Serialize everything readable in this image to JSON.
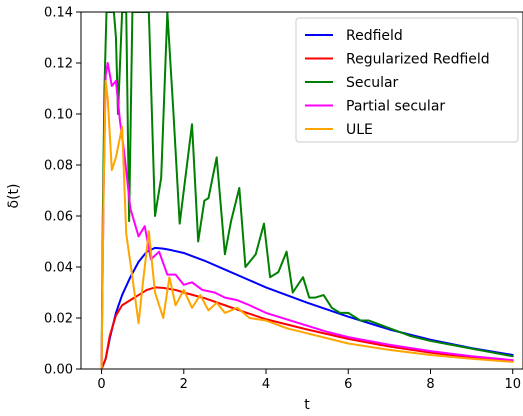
{
  "chart_data": {
    "type": "line",
    "xlabel": "t",
    "ylabel": "δ(t)",
    "xlim": [
      -0.5,
      10.25
    ],
    "ylim": [
      0,
      0.14
    ],
    "xticks": [
      0,
      2,
      4,
      6,
      8,
      10
    ],
    "yticks": [
      0.0,
      0.02,
      0.04,
      0.06,
      0.08,
      0.1,
      0.12,
      0.14
    ],
    "xtick_labels": [
      "0",
      "2",
      "4",
      "6",
      "8",
      "10"
    ],
    "ytick_labels": [
      "0.00",
      "0.02",
      "0.04",
      "0.06",
      "0.08",
      "0.10",
      "0.12",
      "0.14"
    ],
    "grid": false,
    "legend_position": "top-right",
    "series": [
      {
        "name": "Redfield",
        "color": "#0000ff",
        "x": [
          0,
          0.1,
          0.2,
          0.35,
          0.5,
          0.7,
          0.9,
          1.1,
          1.3,
          1.5,
          1.7,
          2.0,
          2.5,
          3.0,
          3.5,
          4.0,
          5.0,
          6.0,
          7.0,
          8.0,
          9.0,
          10.0
        ],
        "y": [
          0,
          0.004,
          0.012,
          0.022,
          0.029,
          0.036,
          0.042,
          0.046,
          0.0475,
          0.0472,
          0.0466,
          0.0455,
          0.0425,
          0.039,
          0.0355,
          0.032,
          0.026,
          0.0205,
          0.0155,
          0.0115,
          0.0082,
          0.0055
        ]
      },
      {
        "name": "Regularized Redfield",
        "color": "#ff0000",
        "x": [
          0,
          0.1,
          0.2,
          0.35,
          0.5,
          0.7,
          0.9,
          1.1,
          1.3,
          1.5,
          1.8,
          2.0,
          2.5,
          3.0,
          3.5,
          4.0,
          5.0,
          6.0,
          7.0,
          8.0,
          9.0,
          10.0
        ],
        "y": [
          0,
          0.004,
          0.013,
          0.021,
          0.025,
          0.027,
          0.029,
          0.031,
          0.032,
          0.0318,
          0.031,
          0.03,
          0.0278,
          0.025,
          0.0222,
          0.0195,
          0.0155,
          0.0118,
          0.0088,
          0.0064,
          0.0045,
          0.003
        ]
      },
      {
        "name": "Secular",
        "color": "#008000",
        "x": [
          0,
          0.03,
          0.07,
          0.12,
          0.2,
          0.3,
          0.35,
          0.4,
          0.5,
          0.6,
          0.67,
          0.75,
          0.85,
          1.0,
          1.15,
          1.3,
          1.45,
          1.6,
          1.75,
          1.9,
          2.0,
          2.2,
          2.35,
          2.5,
          2.6,
          2.8,
          3.0,
          3.15,
          3.35,
          3.5,
          3.75,
          3.95,
          4.1,
          4.3,
          4.5,
          4.65,
          4.9,
          5.05,
          5.2,
          5.4,
          5.6,
          5.8,
          6.0,
          6.3,
          6.5,
          7.0,
          7.5,
          8.0,
          8.5,
          9.0,
          9.5,
          10.0
        ],
        "y": [
          0,
          0.06,
          0.11,
          0.14,
          0.14,
          0.14,
          0.13,
          0.1,
          0.14,
          0.14,
          0.058,
          0.14,
          0.14,
          0.14,
          0.14,
          0.06,
          0.075,
          0.14,
          0.1,
          0.057,
          0.07,
          0.096,
          0.05,
          0.066,
          0.067,
          0.083,
          0.045,
          0.058,
          0.071,
          0.04,
          0.045,
          0.057,
          0.036,
          0.038,
          0.046,
          0.03,
          0.036,
          0.028,
          0.028,
          0.029,
          0.024,
          0.022,
          0.022,
          0.019,
          0.019,
          0.016,
          0.013,
          0.011,
          0.0095,
          0.008,
          0.0065,
          0.005
        ]
      },
      {
        "name": "Partial secular",
        "color": "#ff00ff",
        "x": [
          0,
          0.05,
          0.1,
          0.15,
          0.25,
          0.35,
          0.45,
          0.55,
          0.7,
          0.9,
          1.05,
          1.2,
          1.4,
          1.6,
          1.8,
          2.0,
          2.2,
          2.45,
          2.75,
          3.0,
          3.3,
          3.6,
          4.0,
          4.5,
          5.0,
          5.5,
          6.0,
          7.0,
          8.0,
          9.0,
          10.0
        ],
        "y": [
          0,
          0.07,
          0.115,
          0.12,
          0.111,
          0.113,
          0.097,
          0.085,
          0.063,
          0.052,
          0.056,
          0.043,
          0.046,
          0.037,
          0.037,
          0.033,
          0.034,
          0.031,
          0.03,
          0.028,
          0.027,
          0.025,
          0.022,
          0.0195,
          0.017,
          0.0145,
          0.0125,
          0.0095,
          0.007,
          0.005,
          0.0035
        ]
      },
      {
        "name": "ULE",
        "color": "#ffa500",
        "x": [
          0,
          0.05,
          0.1,
          0.15,
          0.25,
          0.35,
          0.5,
          0.6,
          0.75,
          0.9,
          1.0,
          1.15,
          1.3,
          1.5,
          1.65,
          1.8,
          2.0,
          2.2,
          2.4,
          2.6,
          2.8,
          3.0,
          3.3,
          3.6,
          4.0,
          4.5,
          5.0,
          5.5,
          6.0,
          7.0,
          8.0,
          9.0,
          10.0
        ],
        "y": [
          0,
          0.07,
          0.113,
          0.106,
          0.078,
          0.083,
          0.095,
          0.053,
          0.036,
          0.018,
          0.033,
          0.054,
          0.03,
          0.02,
          0.036,
          0.025,
          0.031,
          0.024,
          0.029,
          0.023,
          0.026,
          0.022,
          0.024,
          0.02,
          0.019,
          0.016,
          0.014,
          0.012,
          0.01,
          0.0075,
          0.0055,
          0.004,
          0.0028
        ]
      }
    ]
  }
}
